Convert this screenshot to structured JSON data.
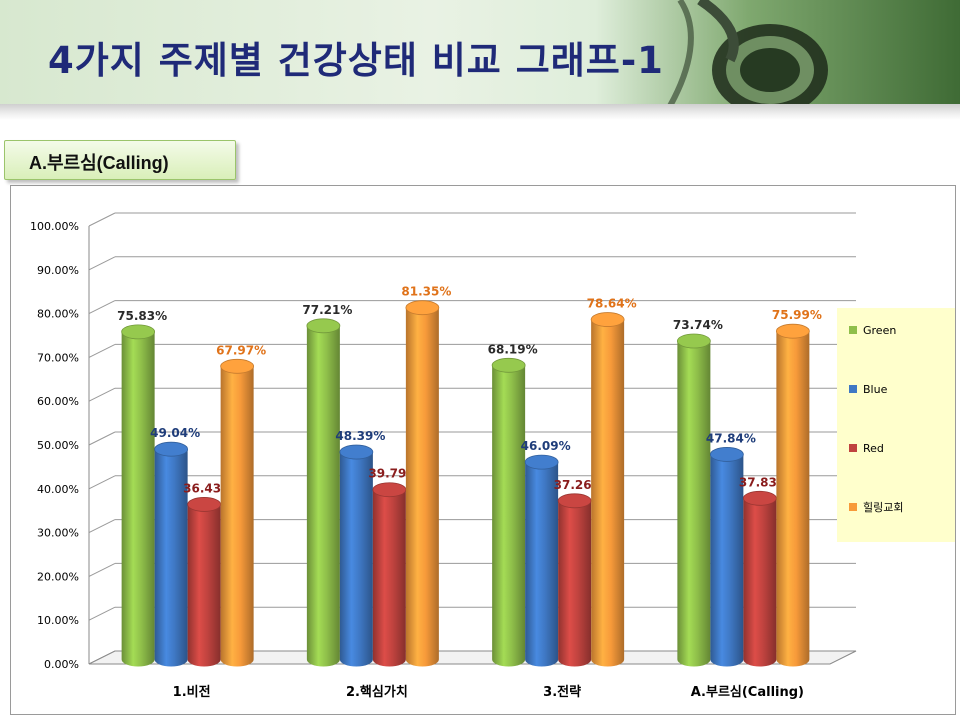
{
  "page": {
    "title": "4가지 주제별 건강상태 비교 그래프-1",
    "subtitle": "A.부르심(Calling)"
  },
  "chart_data": {
    "type": "bar",
    "categories": [
      "1.비전",
      "2.핵심가치",
      "3.전략",
      "A.부르심(Calling)"
    ],
    "series": [
      {
        "name": "Green",
        "color": "#8fbf4a",
        "label_color": "#2b2b2b",
        "values": [
          75.83,
          77.21,
          68.19,
          73.74
        ],
        "labels": [
          "75.83%",
          "77.21%",
          "68.19%",
          "73.74%"
        ]
      },
      {
        "name": "Blue",
        "color": "#3f78c4",
        "label_color": "#1f3d7a",
        "values": [
          49.04,
          48.39,
          46.09,
          47.84
        ],
        "labels": [
          "49.04%",
          "48.39%",
          "46.09%",
          "47.84%"
        ]
      },
      {
        "name": "Red",
        "color": "#c0433f",
        "label_color": "#8a1d1d",
        "values": [
          36.43,
          39.79,
          37.26,
          37.83
        ],
        "labels": [
          "36.43%",
          "39.79%",
          "37.26%",
          "37.83%"
        ]
      },
      {
        "name": "힐링교회",
        "color": "#f79a3a",
        "label_color": "#e0731a",
        "values": [
          67.97,
          81.35,
          78.64,
          75.99
        ],
        "labels": [
          "67.97%",
          "81.35%",
          "78.64%",
          "75.99%"
        ]
      }
    ],
    "ylim": [
      0,
      100
    ],
    "yticks": [
      "0.00%",
      "10.00%",
      "20.00%",
      "30.00%",
      "40.00%",
      "50.00%",
      "60.00%",
      "70.00%",
      "80.00%",
      "90.00%",
      "100.00%"
    ],
    "grid": true,
    "legend": "right",
    "legend_bg": "#ffffcc"
  }
}
